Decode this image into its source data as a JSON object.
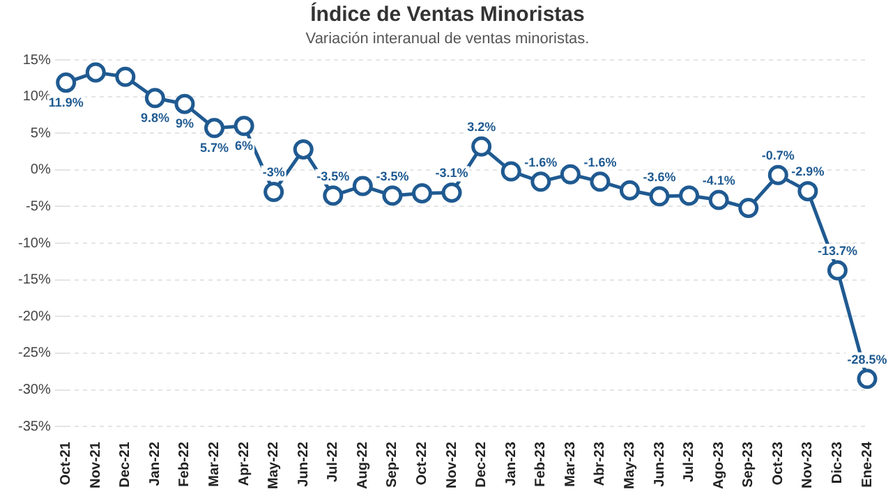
{
  "chart_data": {
    "type": "line",
    "title": "Índice de Ventas Minoristas",
    "subtitle": "Variación interanual de ventas minoristas.",
    "categories": [
      "Oct-21",
      "Nov-21",
      "Dec-21",
      "Jan-22",
      "Feb-22",
      "Mar-22",
      "Apr-22",
      "May-22",
      "Jun-22",
      "Jul-22",
      "Aug-22",
      "Sep-22",
      "Oct-22",
      "Nov-22",
      "Dec-22",
      "Jan-23",
      "Feb-23",
      "Mar-23",
      "Abr-23",
      "May-23",
      "Jun-23",
      "Jul-23",
      "Ago-23",
      "Sep-23",
      "Oct-23",
      "Nov-23",
      "Dic-23",
      "Ene-24"
    ],
    "series": [
      {
        "color": "#1f5a91",
        "values": [
          11.9,
          13.3,
          12.7,
          9.8,
          9,
          5.7,
          6,
          -3,
          2.8,
          -3.5,
          -2.2,
          -3.5,
          -3.2,
          -3.1,
          3.2,
          -0.2,
          -1.6,
          -0.6,
          -1.6,
          -2.8,
          -3.6,
          -3.5,
          -4.1,
          -5.2,
          -0.7,
          -2.9,
          -13.7,
          -28.5
        ],
        "value_labels": [
          "11.9%",
          null,
          null,
          "9.8%",
          "9%",
          "5.7%",
          "6%",
          "-3%",
          null,
          "-3.5%",
          null,
          "-3.5%",
          null,
          "-3.1%",
          "3.2%",
          null,
          "-1.6%",
          null,
          "-1.6%",
          null,
          "-3.6%",
          null,
          "-4.1%",
          null,
          "-0.7%",
          "-2.9%",
          "-13.7%",
          "-28.5%"
        ]
      }
    ],
    "ylim": [
      -35,
      15
    ],
    "yticks": [
      {
        "value": -35,
        "label": "-35%"
      },
      {
        "value": -30,
        "label": "-30%"
      },
      {
        "value": -25,
        "label": "-25%"
      },
      {
        "value": -20,
        "label": "-20%"
      },
      {
        "value": -15,
        "label": "-15%"
      },
      {
        "value": -10,
        "label": "-10%"
      },
      {
        "value": -5,
        "label": "-5%"
      },
      {
        "value": 0,
        "label": "0%"
      },
      {
        "value": 5,
        "label": "5%"
      },
      {
        "value": 10,
        "label": "10%"
      },
      {
        "value": 15,
        "label": "15%"
      }
    ],
    "grid": "y",
    "legend": false,
    "marker": "circle",
    "line_style": "solid"
  }
}
